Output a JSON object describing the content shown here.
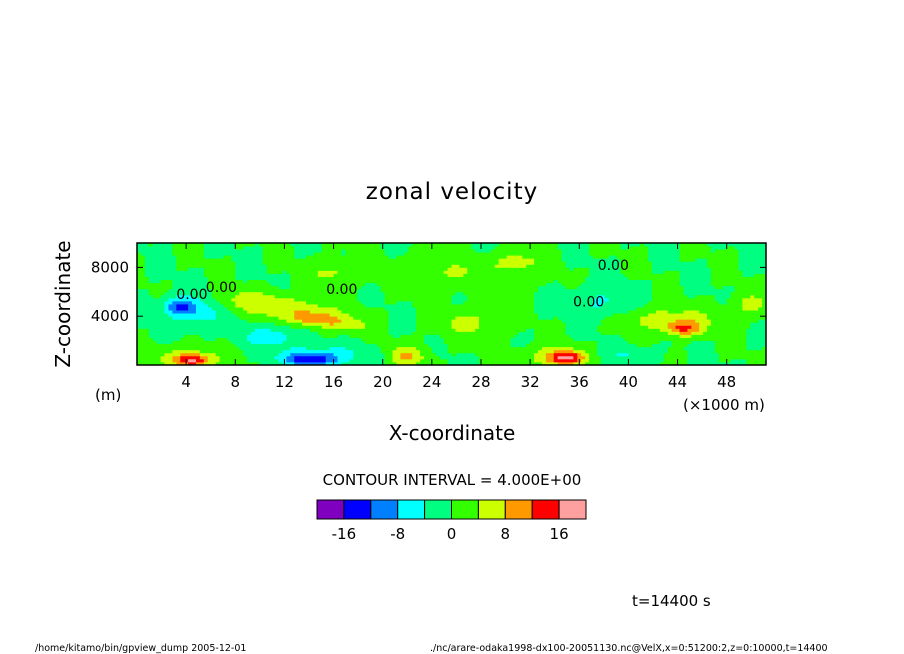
{
  "chart_data": {
    "type": "heatmap",
    "title": "zonal velocity",
    "xlabel": "X-coordinate",
    "ylabel": "Z-coordinate",
    "x_unit_label": "(×1000 m)",
    "y_unit_label": "(m)",
    "xlim": [
      0,
      51.2
    ],
    "ylim": [
      0,
      10000
    ],
    "x_ticks": [
      4,
      8,
      12,
      16,
      20,
      24,
      28,
      32,
      36,
      40,
      44,
      48
    ],
    "x_tick_labels": [
      "4",
      "8",
      "12",
      "16",
      "20",
      "24",
      "28",
      "32",
      "36",
      "40",
      "44",
      "48"
    ],
    "y_ticks": [
      4000,
      8000
    ],
    "y_tick_labels": [
      "4000",
      "8000"
    ],
    "contour_interval_text": "CONTOUR INTERVAL = 4.000E+00",
    "contour_labels": [
      {
        "text": "0.00",
        "x": 5.6,
        "y": 6000
      },
      {
        "text": "0.00",
        "x": 3.2,
        "y": 5400
      },
      {
        "text": "0.00",
        "x": 15.4,
        "y": 5800
      },
      {
        "text": "0.00",
        "x": 37.5,
        "y": 7800
      },
      {
        "text": "0.00",
        "x": 35.5,
        "y": 4800
      }
    ],
    "colorbar": {
      "colors": [
        "#7f00bf",
        "#0000ff",
        "#0080ff",
        "#00ffff",
        "#00ff80",
        "#33ff00",
        "#ccff00",
        "#ff9900",
        "#ff0000",
        "#ffa0a0"
      ],
      "bounds": [
        -20,
        -16,
        -12,
        -8,
        -4,
        0,
        4,
        8,
        12,
        16,
        20
      ],
      "tick_labels": [
        "-16",
        "-8",
        "0",
        "8",
        "16"
      ],
      "tick_values": [
        -16,
        -8,
        0,
        8,
        16
      ]
    },
    "features": [
      {
        "x": 5,
        "z": 4500,
        "rx": 2.5,
        "rz": 1400,
        "v": -6
      },
      {
        "x": 3.5,
        "z": 4800,
        "rx": 1.3,
        "rz": 700,
        "v": -10
      },
      {
        "x": 9,
        "z": 5300,
        "rx": 3.5,
        "rz": 900,
        "v": 6
      },
      {
        "x": 13,
        "z": 4500,
        "rx": 3.5,
        "rz": 900,
        "v": 6
      },
      {
        "x": 14.5,
        "z": 3800,
        "rx": 1.8,
        "rz": 600,
        "v": 9
      },
      {
        "x": 17,
        "z": 3300,
        "rx": 2,
        "rz": 700,
        "v": 6
      },
      {
        "x": 15,
        "z": 700,
        "rx": 3.5,
        "rz": 900,
        "v": -7
      },
      {
        "x": 14,
        "z": 500,
        "rx": 1.8,
        "rz": 500,
        "v": -11
      },
      {
        "x": 4,
        "z": 600,
        "rx": 3,
        "rz": 900,
        "v": 6
      },
      {
        "x": 4.5,
        "z": 400,
        "rx": 1.3,
        "rz": 500,
        "v": 12
      },
      {
        "x": 22,
        "z": 700,
        "rx": 1.5,
        "rz": 900,
        "v": 8
      },
      {
        "x": 34,
        "z": 700,
        "rx": 2.5,
        "rz": 900,
        "v": 7
      },
      {
        "x": 35,
        "z": 600,
        "rx": 1.3,
        "rz": 500,
        "v": 13
      },
      {
        "x": 38,
        "z": 5000,
        "rx": 2.5,
        "rz": 1500,
        "v": -5
      },
      {
        "x": 43,
        "z": 3800,
        "rx": 4.5,
        "rz": 1000,
        "v": 6
      },
      {
        "x": 44.5,
        "z": 3000,
        "rx": 1.5,
        "rz": 600,
        "v": 11
      },
      {
        "x": 26,
        "z": 7500,
        "rx": 5,
        "rz": 1300,
        "v": 4
      },
      {
        "x": 16,
        "z": 7600,
        "rx": 2,
        "rz": 1000,
        "v": 5
      },
      {
        "x": 11,
        "z": 2400,
        "rx": 2.5,
        "rz": 900,
        "v": -6
      },
      {
        "x": 27,
        "z": 3500,
        "rx": 2.5,
        "rz": 1200,
        "v": 5
      },
      {
        "x": 50,
        "z": 5000,
        "rx": 1.5,
        "rz": 900,
        "v": 5
      },
      {
        "x": 40,
        "z": 800,
        "rx": 2,
        "rz": 700,
        "v": -4
      },
      {
        "x": 31,
        "z": 8500,
        "rx": 2,
        "rz": 800,
        "v": 5
      }
    ]
  },
  "annotations": {
    "time_label": "t=14400 s",
    "footer_left": "/home/kitamo/bin/gpview_dump  2005-12-01",
    "footer_right": "./nc/arare-odaka1998-dx100-20051130.nc@VelX,x=0:51200:2,z=0:10000,t=14400"
  }
}
